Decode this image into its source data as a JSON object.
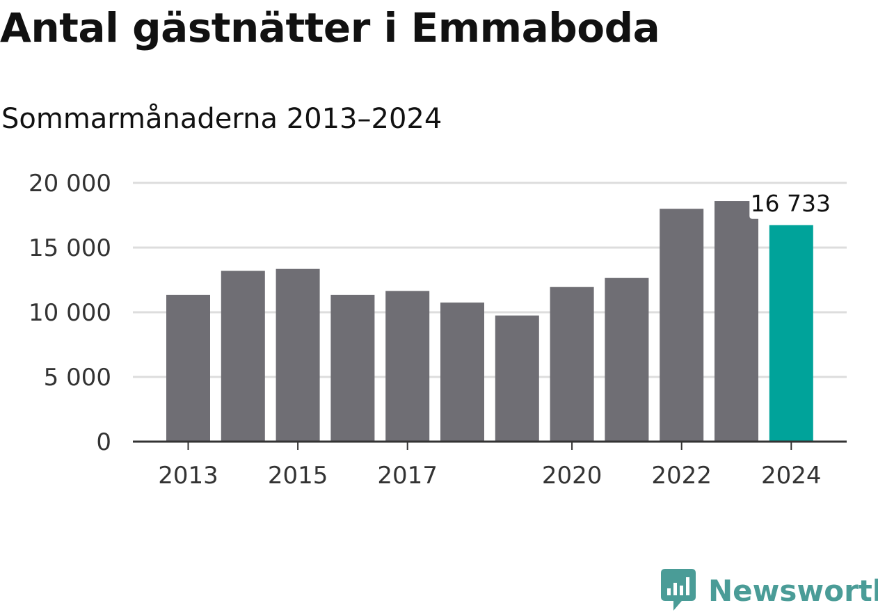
{
  "header": {
    "title": "Antal gästnätter i Emmaboda",
    "subtitle": "Sommarmånaderna 2013–2024"
  },
  "brand": {
    "name": "Newsworthy",
    "icon": "newsworthy-logo-icon",
    "color": "#4a9c97"
  },
  "colors": {
    "bar": "#6f6e74",
    "highlight": "#00a39a",
    "grid": "#dddddd",
    "axis": "#333333"
  },
  "chart_data": {
    "type": "bar",
    "title": "Antal gästnätter i Emmaboda",
    "subtitle": "Sommarmånaderna 2013–2024",
    "categories": [
      "2013",
      "2014",
      "2015",
      "2016",
      "2017",
      "2018",
      "2019",
      "2020",
      "2021",
      "2022",
      "2023",
      "2024"
    ],
    "values": [
      11350,
      13200,
      13350,
      11350,
      11650,
      10750,
      9750,
      11950,
      12650,
      18000,
      18600,
      16733
    ],
    "highlight_index": 11,
    "data_label": "16 733",
    "ylim": [
      0,
      20000
    ],
    "yticks": [
      0,
      5000,
      10000,
      15000,
      20000
    ],
    "ytick_labels": [
      "0",
      "5 000",
      "10 000",
      "15 000",
      "20 000"
    ],
    "xtick_labels": [
      "2013",
      "2015",
      "2017",
      "2020",
      "2022",
      "2024"
    ],
    "xlabel": "",
    "ylabel": "",
    "grid": true,
    "legend": "none"
  }
}
